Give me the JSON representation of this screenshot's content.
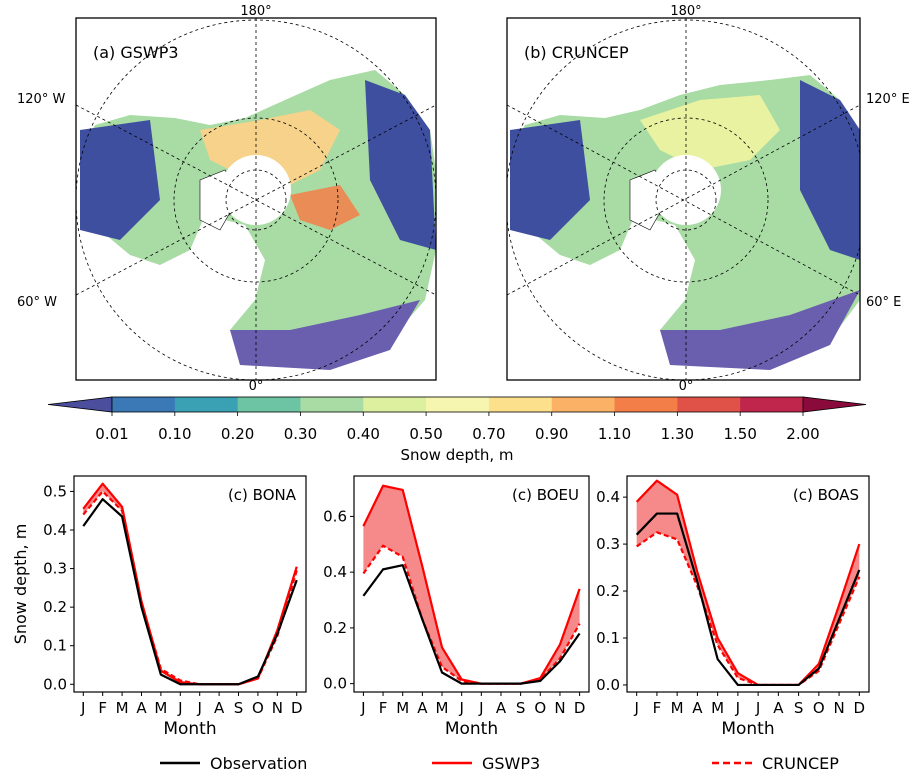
{
  "maps": [
    {
      "panel_label": "(a) GSWP3",
      "lon_labels": {
        "top": "180°",
        "left": "120° W",
        "lower_left": "60° W",
        "bottom": "0°"
      }
    },
    {
      "panel_label": "(b) CRUNCEP",
      "lon_labels": {
        "top": "180°",
        "right": "120° E",
        "lower_right": "60° E",
        "bottom": "0°"
      }
    }
  ],
  "colorbar": {
    "label": "Snow depth, m",
    "ticks": [
      "0.01",
      "0.10",
      "0.20",
      "0.30",
      "0.40",
      "0.50",
      "0.70",
      "0.90",
      "1.10",
      "1.30",
      "1.50",
      "2.00"
    ],
    "colors": [
      "#4a4e9c",
      "#3a78b6",
      "#3aa0b4",
      "#6cc4a4",
      "#a8dca4",
      "#dcf0a0",
      "#f6f6b0",
      "#fde08c",
      "#fbb266",
      "#f47e48",
      "#e05248",
      "#c0264c",
      "#8a0a3c"
    ]
  },
  "legend": {
    "entries": [
      {
        "label": "Observation",
        "color": "#000000",
        "dash": "solid"
      },
      {
        "label": "GSWP3",
        "color": "#ff0000",
        "dash": "solid"
      },
      {
        "label": "CRUNCEP",
        "color": "#ff0000",
        "dash": "dashed"
      }
    ]
  },
  "chart_data": [
    {
      "type": "line",
      "title": "(c) BONA",
      "xlabel": "Month",
      "ylabel": "Snow depth, m",
      "categories": [
        "J",
        "F",
        "M",
        "A",
        "M",
        "J",
        "J",
        "A",
        "S",
        "O",
        "N",
        "D"
      ],
      "ylim": [
        -0.02,
        0.54
      ],
      "yticks": [
        0.0,
        0.1,
        0.2,
        0.3,
        0.4,
        0.5
      ],
      "ytick_labels": [
        "0.0",
        "0.1",
        "0.2",
        "0.3",
        "0.4",
        "0.5"
      ],
      "series": [
        {
          "name": "Observation",
          "values": [
            0.41,
            0.48,
            0.435,
            0.2,
            0.025,
            0.0,
            0.0,
            0.0,
            0.0,
            0.02,
            0.13,
            0.27
          ]
        },
        {
          "name": "GSWP3",
          "values": [
            0.455,
            0.52,
            0.46,
            0.215,
            0.035,
            0.005,
            0.0,
            0.0,
            0.0,
            0.015,
            0.14,
            0.305
          ]
        },
        {
          "name": "CRUNCEP",
          "values": [
            0.44,
            0.5,
            0.45,
            0.21,
            0.04,
            0.01,
            0.0,
            0.0,
            0.0,
            0.015,
            0.125,
            0.295
          ]
        }
      ]
    },
    {
      "type": "line",
      "title": "(c) BOEU",
      "xlabel": "Month",
      "ylabel": "",
      "categories": [
        "J",
        "F",
        "M",
        "A",
        "M",
        "J",
        "J",
        "A",
        "S",
        "O",
        "N",
        "D"
      ],
      "ylim": [
        -0.03,
        0.745
      ],
      "yticks": [
        0.0,
        0.2,
        0.4,
        0.6
      ],
      "ytick_labels": [
        "0.0",
        "0.2",
        "0.4",
        "0.6"
      ],
      "series": [
        {
          "name": "Observation",
          "values": [
            0.315,
            0.41,
            0.425,
            0.23,
            0.04,
            0.0,
            0.0,
            0.0,
            0.0,
            0.01,
            0.08,
            0.18
          ]
        },
        {
          "name": "GSWP3",
          "values": [
            0.565,
            0.71,
            0.695,
            0.42,
            0.13,
            0.015,
            0.0,
            0.0,
            0.0,
            0.02,
            0.14,
            0.34
          ]
        },
        {
          "name": "CRUNCEP",
          "values": [
            0.395,
            0.495,
            0.455,
            0.23,
            0.06,
            0.01,
            0.0,
            0.0,
            0.0,
            0.015,
            0.09,
            0.215
          ]
        }
      ]
    },
    {
      "type": "line",
      "title": "(c) BOAS",
      "xlabel": "Month",
      "ylabel": "",
      "categories": [
        "J",
        "F",
        "M",
        "A",
        "M",
        "J",
        "J",
        "A",
        "S",
        "O",
        "N",
        "D"
      ],
      "ylim": [
        -0.015,
        0.445
      ],
      "yticks": [
        0.0,
        0.1,
        0.2,
        0.3,
        0.4
      ],
      "ytick_labels": [
        "0.0",
        "0.1",
        "0.2",
        "0.3",
        "0.4"
      ],
      "series": [
        {
          "name": "Observation",
          "values": [
            0.32,
            0.365,
            0.365,
            0.22,
            0.055,
            0.0,
            0.0,
            0.0,
            0.0,
            0.035,
            0.14,
            0.245
          ]
        },
        {
          "name": "GSWP3",
          "values": [
            0.39,
            0.435,
            0.405,
            0.24,
            0.1,
            0.025,
            0.0,
            0.0,
            0.0,
            0.045,
            0.17,
            0.3
          ]
        },
        {
          "name": "CRUNCEP",
          "values": [
            0.295,
            0.325,
            0.31,
            0.21,
            0.085,
            0.015,
            0.0,
            0.0,
            0.0,
            0.03,
            0.13,
            0.23
          ]
        }
      ]
    }
  ]
}
